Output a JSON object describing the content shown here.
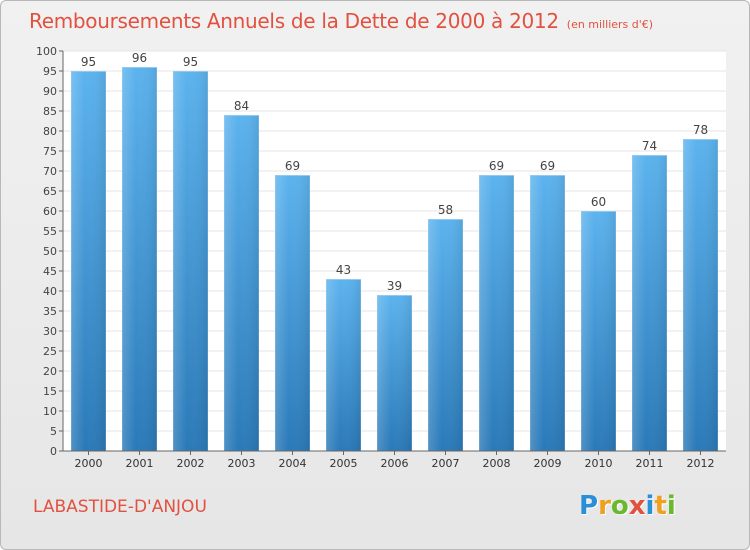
{
  "header": {
    "title": "Remboursements Annuels de la Dette de 2000 à 2012",
    "subtitle": "(en milliers d'€)"
  },
  "footer": {
    "place": "LABASTIDE-D'ANJOU",
    "logo_text": "Proxiti",
    "logo_letters": [
      {
        "ch": "P",
        "color": "#2a8fd6"
      },
      {
        "ch": "r",
        "color": "#f0a020"
      },
      {
        "ch": "o",
        "color": "#6ab82e"
      },
      {
        "ch": "x",
        "color": "#e2513f"
      },
      {
        "ch": "i",
        "color": "#2a8fd6"
      },
      {
        "ch": "t",
        "color": "#f0a020"
      },
      {
        "ch": "i",
        "color": "#6ab82e"
      }
    ]
  },
  "chart_data": {
    "type": "bar",
    "categories": [
      "2000",
      "2001",
      "2002",
      "2003",
      "2004",
      "2005",
      "2006",
      "2007",
      "2008",
      "2009",
      "2010",
      "2011",
      "2012"
    ],
    "values": [
      95,
      96,
      95,
      84,
      69,
      43,
      39,
      58,
      69,
      69,
      60,
      74,
      78
    ],
    "title": "Remboursements Annuels de la Dette de 2000 à 2012",
    "subtitle": "(en milliers d'€)",
    "xlabel": "",
    "ylabel": "",
    "ylim": [
      0,
      100
    ],
    "ytick_step": 5,
    "grid": true,
    "legend": "none",
    "bar_color": "#3d9ae3"
  }
}
